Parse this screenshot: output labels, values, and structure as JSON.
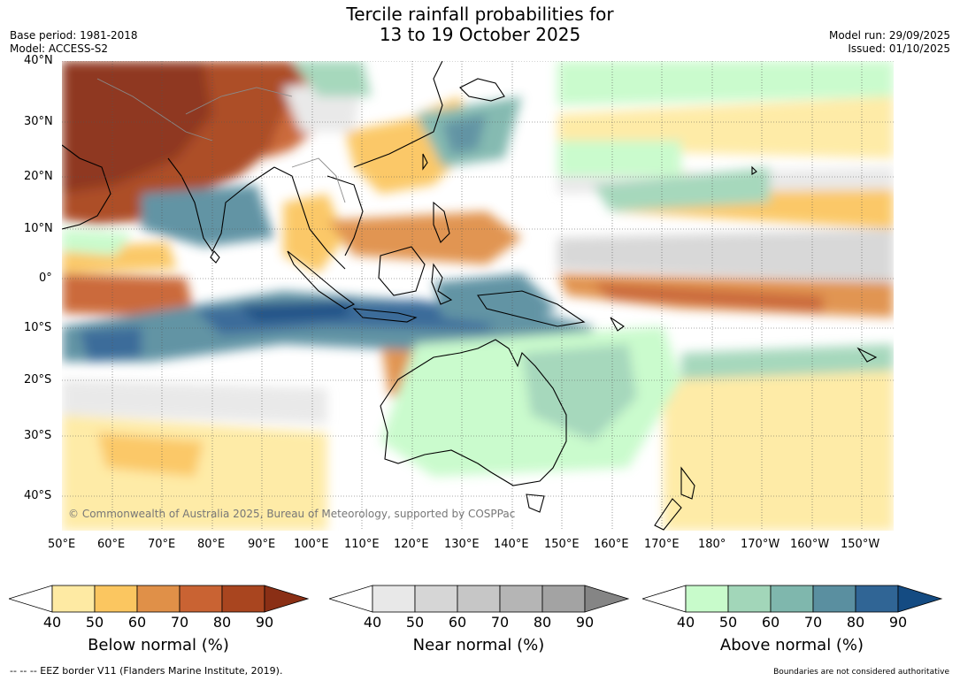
{
  "title": {
    "line1": "Tercile rainfall probabilities for",
    "line2": "13 to 19 October 2025"
  },
  "meta": {
    "base_period": "Base period: 1981-2018",
    "model": "Model: ACCESS-S2",
    "model_run": "Model run: 29/09/2025",
    "issued": "Issued: 01/10/2025"
  },
  "map": {
    "copyright": "© Commonwealth of Australia 2025, Bureau of Meteorology, supported by COSPPac",
    "lat_labels": [
      "40°N",
      "30°N",
      "20°N",
      "10°N",
      "0°",
      "10°S",
      "20°S",
      "30°S",
      "40°S"
    ],
    "lon_labels": [
      "50°E",
      "60°E",
      "70°E",
      "80°E",
      "90°E",
      "100°E",
      "110°E",
      "120°E",
      "130°E",
      "140°E",
      "150°E",
      "160°E",
      "170°E",
      "180°",
      "170°W",
      "160°W",
      "150°W"
    ],
    "ocean_color": "#ffffff",
    "land_outline_color": "#000000"
  },
  "colorbars": [
    {
      "label": "Below normal (%)",
      "ticks": [
        "40",
        "50",
        "60",
        "70",
        "80",
        "90"
      ],
      "colors": [
        "#ffffff",
        "#feeaa3",
        "#fbc660",
        "#e09048",
        "#c96333",
        "#a9451f",
        "#8a2f15"
      ]
    },
    {
      "label": "Near normal (%)",
      "ticks": [
        "40",
        "50",
        "60",
        "70",
        "80",
        "90"
      ],
      "colors": [
        "#ffffff",
        "#e8e8e8",
        "#d6d6d6",
        "#c6c6c6",
        "#b5b5b5",
        "#a3a3a3",
        "#858585"
      ]
    },
    {
      "label": "Above normal (%)",
      "ticks": [
        "40",
        "50",
        "60",
        "70",
        "80",
        "90"
      ],
      "colors": [
        "#ffffff",
        "#c8fbcb",
        "#a2d6b9",
        "#7fb7ad",
        "#5a8fa0",
        "#306595",
        "#144b82"
      ]
    }
  ],
  "footer": {
    "left": "--  --  -- EEZ border V11 (Flanders Marine Institute, 2019).",
    "right": "Boundaries are not considered authoritative"
  }
}
